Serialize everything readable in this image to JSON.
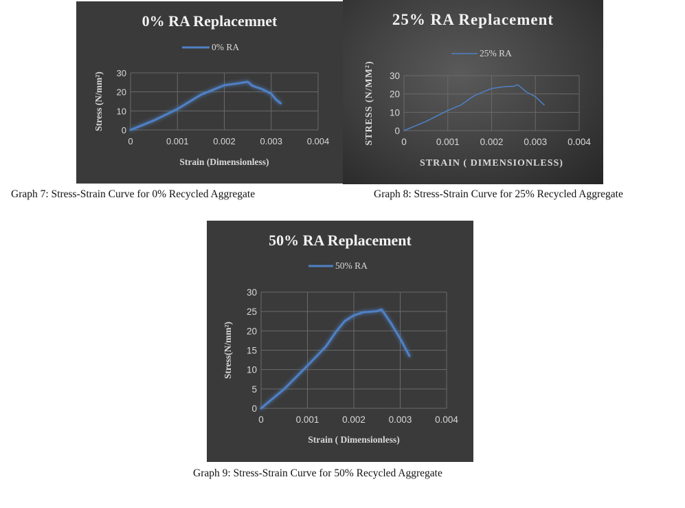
{
  "captions": [
    "Graph 7: Stress-Strain Curve for 0% Recycled Aggregate",
    "Graph 8: Stress-Strain Curve for 25% Recycled Aggregate",
    "Graph 9: Stress-Strain Curve for 50% Recycled Aggregate"
  ],
  "colors": {
    "line": "#4f81c7",
    "glow": "#6fa4ff",
    "grid": "#6a6a6a",
    "text": "#d9d9d9",
    "title": "#f2f2f2"
  },
  "chart_data": [
    {
      "type": "line",
      "title": "0% RA Replacemnet",
      "xlabel": "Strain (Dimensionless)",
      "ylabel": "Stress (N/mm²)",
      "xlim": [
        0,
        0.004
      ],
      "ylim": [
        0,
        30
      ],
      "xticks": [
        "0",
        "0.001",
        "0.002",
        "0.003",
        "0.004"
      ],
      "yticks": [
        "0",
        "10",
        "20",
        "30"
      ],
      "grid": true,
      "legend": "top",
      "series": [
        {
          "name": "0% RA",
          "x": [
            0,
            0.0005,
            0.001,
            0.0015,
            0.002,
            0.0023,
            0.0025,
            0.0026,
            0.0028,
            0.003,
            0.0031,
            0.0032
          ],
          "y": [
            0,
            5,
            11,
            18.5,
            23.5,
            24.5,
            25.3,
            23.2,
            21.5,
            19,
            16,
            14
          ]
        }
      ]
    },
    {
      "type": "line",
      "title": "25% RA Replacement",
      "xlabel": "STRAIN ( DIMENSIONLESS)",
      "ylabel": "STRESS (N/MM²)",
      "xlim": [
        0,
        0.004
      ],
      "ylim": [
        0,
        30
      ],
      "xticks": [
        "0",
        "0.001",
        "0.002",
        "0.003",
        "0.004"
      ],
      "yticks": [
        "0",
        "10",
        "20",
        "30"
      ],
      "grid": true,
      "legend": "top",
      "series": [
        {
          "name": "25% RA",
          "x": [
            0,
            0.0005,
            0.001,
            0.0013,
            0.0016,
            0.002,
            0.0023,
            0.0025,
            0.0026,
            0.0028,
            0.003,
            0.0032
          ],
          "y": [
            0,
            5,
            11,
            14,
            19,
            23,
            24,
            24.2,
            25,
            21,
            18.5,
            14
          ]
        }
      ]
    },
    {
      "type": "line",
      "title": "50% RA Replacement",
      "xlabel": "Strain ( Dimensionless)",
      "ylabel": "Stress(N/mm²)",
      "xlim": [
        0,
        0.004
      ],
      "ylim": [
        0,
        30
      ],
      "xticks": [
        "0",
        "0.001",
        "0.002",
        "0.003",
        "0.004"
      ],
      "yticks": [
        "0",
        "5",
        "10",
        "15",
        "20",
        "25",
        "30"
      ],
      "grid": true,
      "legend": "top",
      "series": [
        {
          "name": "50% RA",
          "x": [
            0,
            0.0005,
            0.001,
            0.0014,
            0.0016,
            0.0018,
            0.002,
            0.0022,
            0.0024,
            0.0025,
            0.0026,
            0.0028,
            0.003,
            0.0032
          ],
          "y": [
            0,
            5,
            11,
            16,
            19.5,
            22.5,
            24,
            24.8,
            25,
            25.1,
            25.5,
            22,
            18,
            13.5
          ]
        }
      ]
    }
  ]
}
